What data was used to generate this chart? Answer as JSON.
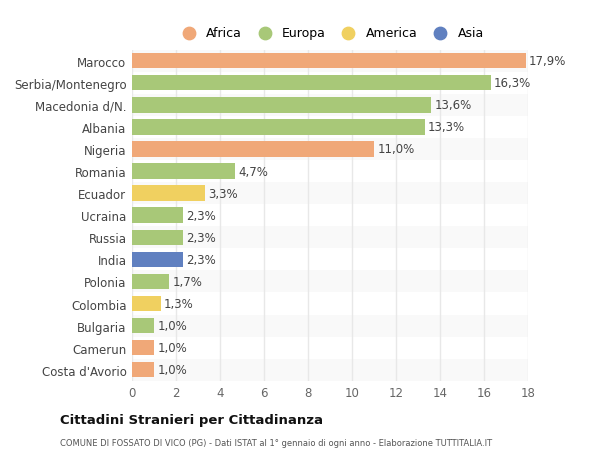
{
  "categories": [
    "Costa d'Avorio",
    "Camerun",
    "Bulgaria",
    "Colombia",
    "Polonia",
    "India",
    "Russia",
    "Ucraina",
    "Ecuador",
    "Romania",
    "Nigeria",
    "Albania",
    "Macedonia d/N.",
    "Serbia/Montenegro",
    "Marocco"
  ],
  "values": [
    1.0,
    1.0,
    1.0,
    1.3,
    1.7,
    2.3,
    2.3,
    2.3,
    3.3,
    4.7,
    11.0,
    13.3,
    13.6,
    16.3,
    17.9
  ],
  "labels": [
    "1,0%",
    "1,0%",
    "1,0%",
    "1,3%",
    "1,7%",
    "2,3%",
    "2,3%",
    "2,3%",
    "3,3%",
    "4,7%",
    "11,0%",
    "13,3%",
    "13,6%",
    "16,3%",
    "17,9%"
  ],
  "colors": [
    "#f0a878",
    "#f0a878",
    "#a8c878",
    "#f0d060",
    "#a8c878",
    "#6080c0",
    "#a8c878",
    "#a8c878",
    "#f0d060",
    "#a8c878",
    "#f0a878",
    "#a8c878",
    "#a8c878",
    "#a8c878",
    "#f0a878"
  ],
  "legend_labels": [
    "Africa",
    "Europa",
    "America",
    "Asia"
  ],
  "legend_colors": [
    "#f0a878",
    "#a8c878",
    "#f0d060",
    "#6080c0"
  ],
  "row_colors": [
    "#f9f9f9",
    "#ffffff"
  ],
  "xlim": [
    0,
    18
  ],
  "xticks": [
    0,
    2,
    4,
    6,
    8,
    10,
    12,
    14,
    16,
    18
  ],
  "title": "Cittadini Stranieri per Cittadinanza",
  "subtitle": "COMUNE DI FOSSATO DI VICO (PG) - Dati ISTAT al 1° gennaio di ogni anno - Elaborazione TUTTITALIA.IT",
  "bg_color": "#ffffff",
  "grid_color": "#e8e8e8",
  "label_fontsize": 8.5,
  "tick_fontsize": 8.5,
  "bar_height": 0.7
}
